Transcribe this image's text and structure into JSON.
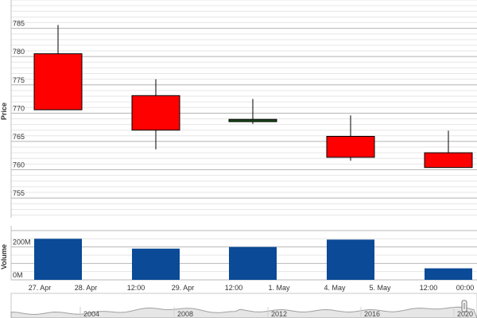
{
  "chart_data": {
    "type": "candlestick",
    "price_axis": {
      "label": "Price",
      "ticks": [
        755,
        760,
        765,
        770,
        775,
        780,
        785
      ],
      "ylim": [
        751.5,
        790
      ]
    },
    "volume_axis": {
      "label": "Volume",
      "ticks": [
        "0M",
        "200M"
      ],
      "tick_values": [
        0,
        200
      ],
      "ylim": [
        0,
        300
      ]
    },
    "x_ticks": [
      "27. Apr",
      "28. Apr",
      "12:00",
      "29. Apr",
      "12:00",
      "1. May",
      "4. May",
      "5. May",
      "12:00",
      "00:00"
    ],
    "candles": [
      {
        "open": 780.5,
        "high": 785.6,
        "low": 770.6,
        "close": 770.6,
        "direction": "down"
      },
      {
        "open": 773.1,
        "high": 776.0,
        "low": 763.6,
        "close": 767.0,
        "direction": "down"
      },
      {
        "open": 768.5,
        "high": 772.5,
        "low": 768.1,
        "close": 768.9,
        "direction": "up"
      },
      {
        "open": 765.9,
        "high": 769.6,
        "low": 761.6,
        "close": 762.2,
        "direction": "down"
      },
      {
        "open": 763.0,
        "high": 766.9,
        "low": 760.4,
        "close": 760.4,
        "direction": "down"
      }
    ],
    "volume": [
      250,
      190,
      200,
      245,
      70
    ],
    "navigator": {
      "year_labels": [
        "2004",
        "2008",
        "2012",
        "2016",
        "2020"
      ]
    },
    "grid": true
  },
  "colors": {
    "down": "#ff0000",
    "up": "#1a4d1a",
    "volume": "#0a4a96",
    "grid": "#d4d4d4",
    "navigator_line": "#a0a0a0",
    "navigator_fill": "#e6e6e6"
  }
}
